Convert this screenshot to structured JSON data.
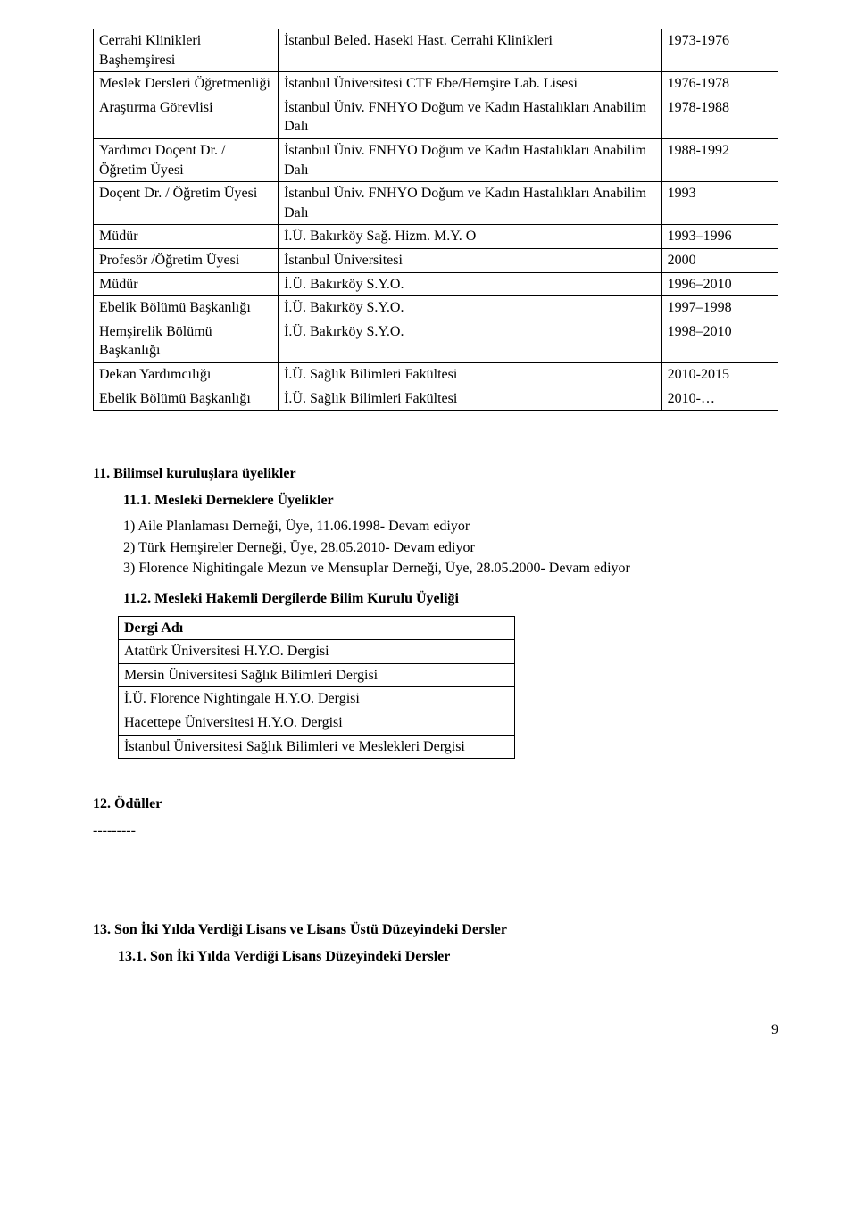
{
  "positions": {
    "rows": [
      {
        "title": "Cerrahi Klinikleri Başhemşiresi",
        "place": "İstanbul Beled. Haseki Hast. Cerrahi Klinikleri",
        "years": "1973-1976"
      },
      {
        "title": "Meslek Dersleri Öğretmenliği",
        "place": "İstanbul Üniversitesi CTF Ebe/Hemşire Lab. Lisesi",
        "years": "1976-1978"
      },
      {
        "title": "Araştırma Görevlisi",
        "place": "İstanbul Üniv. FNHYO Doğum ve Kadın Hastalıkları Anabilim Dalı",
        "years": "1978-1988"
      },
      {
        "title": "Yardımcı Doçent Dr. / Öğretim Üyesi",
        "place": "İstanbul Üniv. FNHYO Doğum ve Kadın Hastalıkları Anabilim Dalı",
        "years": "1988-1992"
      },
      {
        "title": "Doçent Dr. / Öğretim Üyesi",
        "place": "İstanbul Üniv. FNHYO Doğum ve Kadın Hastalıkları Anabilim Dalı",
        "years": "1993"
      },
      {
        "title": "Müdür",
        "place": "İ.Ü. Bakırköy Sağ. Hizm. M.Y. O",
        "years": "1993–1996"
      },
      {
        "title": "Profesör /Öğretim Üyesi",
        "place": "İstanbul Üniversitesi",
        "years": "2000"
      },
      {
        "title": "Müdür",
        "place": "İ.Ü. Bakırköy S.Y.O.",
        "years": "1996–2010"
      },
      {
        "title": "Ebelik Bölümü Başkanlığı",
        "place": "İ.Ü. Bakırköy S.Y.O.",
        "years": "1997–1998"
      },
      {
        "title": "Hemşirelik Bölümü Başkanlığı",
        "place": "İ.Ü. Bakırköy S.Y.O.",
        "years": "1998–2010"
      },
      {
        "title": "Dekan Yardımcılığı",
        "place": "İ.Ü. Sağlık Bilimleri Fakültesi",
        "years": "2010-2015"
      },
      {
        "title": "Ebelik Bölümü Başkanlığı",
        "place": "İ.Ü. Sağlık Bilimleri Fakültesi",
        "years": "2010-…"
      }
    ]
  },
  "section11": {
    "heading": "11.  Bilimsel kuruluşlara üyelikler",
    "sub1": {
      "heading": "11.1.      Mesleki Derneklere Üyelikler",
      "items": [
        "1)   Aile Planlaması Derneği, Üye, 11.06.1998- Devam ediyor",
        "2)   Türk Hemşireler Derneği, Üye, 28.05.2010- Devam ediyor",
        "3)   Florence Nighitingale  Mezun  ve  Mensuplar  Derneği, Üye, 28.05.2000- Devam ediyor"
      ]
    },
    "sub2": {
      "heading": "11.2.      Mesleki Hakemli Dergilerde Bilim Kurulu Üyeliği",
      "table_header": "Dergi Adı",
      "journals": [
        "Atatürk Üniversitesi H.Y.O. Dergisi",
        "Mersin Üniversitesi Sağlık Bilimleri Dergisi",
        "İ.Ü. Florence Nightingale H.Y.O. Dergisi",
        "Hacettepe Üniversitesi H.Y.O. Dergisi",
        "İstanbul Üniversitesi Sağlık Bilimleri ve Meslekleri Dergisi"
      ]
    }
  },
  "section12": {
    "heading": "12.  Ödüller",
    "content": "---------"
  },
  "section13": {
    "heading": "13.  Son İki Yılda Verdiği Lisans ve Lisans Üstü Düzeyindeki Dersler",
    "sub1": "13.1. Son İki Yılda Verdiği Lisans Düzeyindeki Dersler"
  },
  "page_number": "9"
}
